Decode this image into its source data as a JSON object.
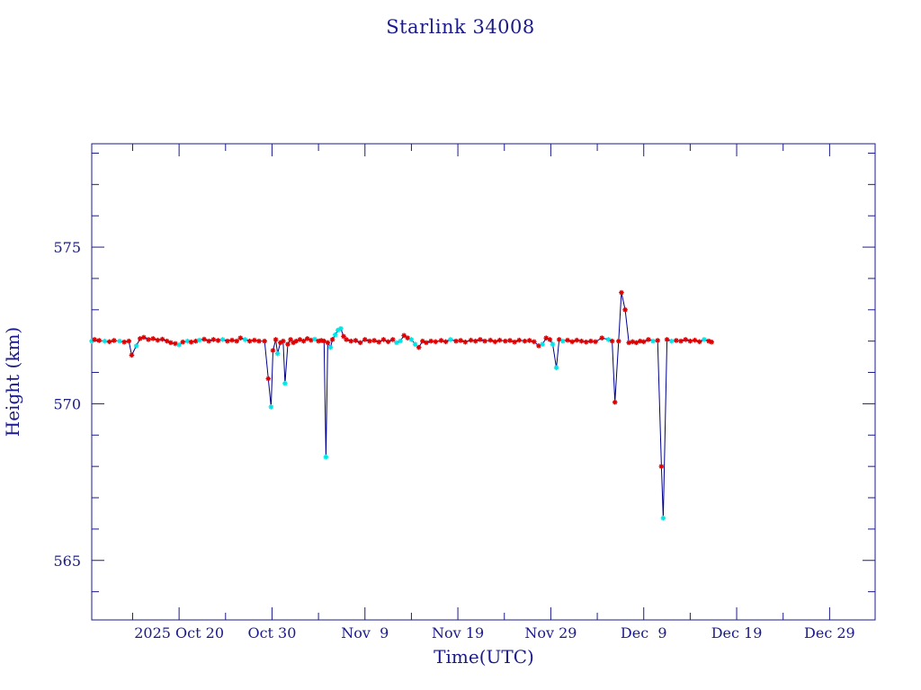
{
  "chart_data": {
    "type": "line",
    "title": "Starlink 34008",
    "xlabel": "Time(UTC)",
    "ylabel": "Height (km)",
    "x_tick_labels": [
      "2025 Oct 20",
      "Oct 30",
      "Nov  9",
      "Nov 19",
      "Nov 29",
      "Dec  9",
      "Dec 19",
      "Dec 29"
    ],
    "x_tick_days": [
      0,
      10,
      20,
      30,
      40,
      50,
      60,
      70
    ],
    "xlim_days": [
      -9.4,
      74.9
    ],
    "y_ticks": [
      565,
      570,
      575
    ],
    "ylim": [
      563.1,
      578.3
    ],
    "grid": false,
    "colors": {
      "axes": "#1a1a8c",
      "line": "#00008b",
      "marker_a": "#00e5e5",
      "marker_b": "#e00000"
    },
    "series": [
      {
        "values": [
          {
            "x": -9.4,
            "y": 572.0,
            "m": "a"
          },
          {
            "x": -9.1,
            "y": 572.05,
            "m": "b"
          },
          {
            "x": -8.6,
            "y": 572.02,
            "m": "b"
          },
          {
            "x": -8.0,
            "y": 572.0,
            "m": "a"
          },
          {
            "x": -7.5,
            "y": 571.98,
            "m": "b"
          },
          {
            "x": -7.0,
            "y": 572.02,
            "m": "b"
          },
          {
            "x": -6.4,
            "y": 572.0,
            "m": "a"
          },
          {
            "x": -5.9,
            "y": 571.97,
            "m": "b"
          },
          {
            "x": -5.4,
            "y": 572.0,
            "m": "b"
          },
          {
            "x": -5.1,
            "y": 571.55,
            "m": "b"
          },
          {
            "x": -4.6,
            "y": 571.85,
            "m": "a"
          },
          {
            "x": -4.2,
            "y": 572.08,
            "m": "b"
          },
          {
            "x": -3.8,
            "y": 572.12,
            "m": "b"
          },
          {
            "x": -3.3,
            "y": 572.05,
            "m": "b"
          },
          {
            "x": -2.8,
            "y": 572.08,
            "m": "b"
          },
          {
            "x": -2.3,
            "y": 572.03,
            "m": "b"
          },
          {
            "x": -1.8,
            "y": 572.06,
            "m": "b"
          },
          {
            "x": -1.3,
            "y": 572.0,
            "m": "b"
          },
          {
            "x": -0.9,
            "y": 571.95,
            "m": "b"
          },
          {
            "x": -0.4,
            "y": 571.92,
            "m": "b"
          },
          {
            "x": 0.0,
            "y": 571.88,
            "m": "a"
          },
          {
            "x": 0.4,
            "y": 571.97,
            "m": "b"
          },
          {
            "x": 0.9,
            "y": 572.0,
            "m": "a"
          },
          {
            "x": 1.3,
            "y": 571.97,
            "m": "b"
          },
          {
            "x": 1.8,
            "y": 572.0,
            "m": "b"
          },
          {
            "x": 2.2,
            "y": 572.03,
            "m": "a"
          },
          {
            "x": 2.7,
            "y": 572.06,
            "m": "b"
          },
          {
            "x": 3.2,
            "y": 572.0,
            "m": "b"
          },
          {
            "x": 3.7,
            "y": 572.05,
            "m": "b"
          },
          {
            "x": 4.2,
            "y": 572.02,
            "m": "b"
          },
          {
            "x": 4.7,
            "y": 572.05,
            "m": "a"
          },
          {
            "x": 5.2,
            "y": 572.0,
            "m": "b"
          },
          {
            "x": 5.7,
            "y": 572.03,
            "m": "b"
          },
          {
            "x": 6.2,
            "y": 572.0,
            "m": "b"
          },
          {
            "x": 6.6,
            "y": 572.1,
            "m": "b"
          },
          {
            "x": 7.1,
            "y": 572.05,
            "m": "a"
          },
          {
            "x": 7.6,
            "y": 572.0,
            "m": "b"
          },
          {
            "x": 8.1,
            "y": 572.03,
            "m": "b"
          },
          {
            "x": 8.6,
            "y": 572.0,
            "m": "b"
          },
          {
            "x": 9.2,
            "y": 572.0,
            "m": "b"
          },
          {
            "x": 9.6,
            "y": 570.8,
            "m": "b"
          },
          {
            "x": 9.9,
            "y": 569.9,
            "m": "a"
          },
          {
            "x": 10.1,
            "y": 571.7,
            "m": "b"
          },
          {
            "x": 10.4,
            "y": 572.05,
            "m": "b"
          },
          {
            "x": 10.6,
            "y": 571.6,
            "m": "a"
          },
          {
            "x": 10.9,
            "y": 571.95,
            "m": "b"
          },
          {
            "x": 11.2,
            "y": 572.0,
            "m": "b"
          },
          {
            "x": 11.4,
            "y": 570.65,
            "m": "a"
          },
          {
            "x": 11.7,
            "y": 571.9,
            "m": "b"
          },
          {
            "x": 12.0,
            "y": 572.05,
            "m": "b"
          },
          {
            "x": 12.3,
            "y": 571.95,
            "m": "b"
          },
          {
            "x": 12.6,
            "y": 572.0,
            "m": "b"
          },
          {
            "x": 13.0,
            "y": 572.05,
            "m": "b"
          },
          {
            "x": 13.4,
            "y": 572.0,
            "m": "b"
          },
          {
            "x": 13.8,
            "y": 572.08,
            "m": "b"
          },
          {
            "x": 14.2,
            "y": 572.03,
            "m": "b"
          },
          {
            "x": 14.6,
            "y": 572.06,
            "m": "a"
          },
          {
            "x": 15.0,
            "y": 572.0,
            "m": "b"
          },
          {
            "x": 15.3,
            "y": 572.02,
            "m": "b"
          },
          {
            "x": 15.6,
            "y": 572.0,
            "m": "b"
          },
          {
            "x": 15.8,
            "y": 568.3,
            "m": "a"
          },
          {
            "x": 16.0,
            "y": 571.95,
            "m": "b"
          },
          {
            "x": 16.3,
            "y": 571.8,
            "m": "a"
          },
          {
            "x": 16.5,
            "y": 572.05,
            "m": "b"
          },
          {
            "x": 16.8,
            "y": 572.2,
            "m": "a"
          },
          {
            "x": 17.1,
            "y": 572.35,
            "m": "a"
          },
          {
            "x": 17.4,
            "y": 572.4,
            "m": "a"
          },
          {
            "x": 17.7,
            "y": 572.15,
            "m": "b"
          },
          {
            "x": 18.0,
            "y": 572.05,
            "m": "b"
          },
          {
            "x": 18.5,
            "y": 572.0,
            "m": "b"
          },
          {
            "x": 19.0,
            "y": 572.02,
            "m": "b"
          },
          {
            "x": 19.5,
            "y": 571.95,
            "m": "b"
          },
          {
            "x": 20.0,
            "y": 572.05,
            "m": "b"
          },
          {
            "x": 20.5,
            "y": 572.0,
            "m": "b"
          },
          {
            "x": 21.0,
            "y": 572.02,
            "m": "b"
          },
          {
            "x": 21.5,
            "y": 571.97,
            "m": "b"
          },
          {
            "x": 22.0,
            "y": 572.05,
            "m": "b"
          },
          {
            "x": 22.5,
            "y": 571.98,
            "m": "b"
          },
          {
            "x": 23.0,
            "y": 572.05,
            "m": "b"
          },
          {
            "x": 23.4,
            "y": 571.95,
            "m": "a"
          },
          {
            "x": 23.8,
            "y": 572.0,
            "m": "a"
          },
          {
            "x": 24.2,
            "y": 572.18,
            "m": "b"
          },
          {
            "x": 24.6,
            "y": 572.1,
            "m": "b"
          },
          {
            "x": 25.0,
            "y": 572.05,
            "m": "a"
          },
          {
            "x": 25.4,
            "y": 571.9,
            "m": "a"
          },
          {
            "x": 25.8,
            "y": 571.8,
            "m": "b"
          },
          {
            "x": 26.2,
            "y": 572.0,
            "m": "b"
          },
          {
            "x": 26.6,
            "y": 571.95,
            "m": "b"
          },
          {
            "x": 27.1,
            "y": 572.0,
            "m": "b"
          },
          {
            "x": 27.6,
            "y": 571.98,
            "m": "b"
          },
          {
            "x": 28.2,
            "y": 572.02,
            "m": "b"
          },
          {
            "x": 28.7,
            "y": 571.98,
            "m": "b"
          },
          {
            "x": 29.2,
            "y": 572.05,
            "m": "a"
          },
          {
            "x": 29.8,
            "y": 572.0,
            "m": "b"
          },
          {
            "x": 30.3,
            "y": 572.02,
            "m": "b"
          },
          {
            "x": 30.8,
            "y": 571.97,
            "m": "b"
          },
          {
            "x": 31.4,
            "y": 572.03,
            "m": "b"
          },
          {
            "x": 31.9,
            "y": 572.0,
            "m": "b"
          },
          {
            "x": 32.4,
            "y": 572.05,
            "m": "b"
          },
          {
            "x": 32.9,
            "y": 572.0,
            "m": "b"
          },
          {
            "x": 33.5,
            "y": 572.03,
            "m": "b"
          },
          {
            "x": 34.0,
            "y": 571.98,
            "m": "b"
          },
          {
            "x": 34.5,
            "y": 572.03,
            "m": "b"
          },
          {
            "x": 35.1,
            "y": 572.0,
            "m": "b"
          },
          {
            "x": 35.6,
            "y": 572.02,
            "m": "b"
          },
          {
            "x": 36.1,
            "y": 571.97,
            "m": "b"
          },
          {
            "x": 36.6,
            "y": 572.03,
            "m": "b"
          },
          {
            "x": 37.2,
            "y": 572.0,
            "m": "b"
          },
          {
            "x": 37.7,
            "y": 572.02,
            "m": "b"
          },
          {
            "x": 38.2,
            "y": 571.98,
            "m": "b"
          },
          {
            "x": 38.7,
            "y": 571.85,
            "m": "b"
          },
          {
            "x": 39.1,
            "y": 571.9,
            "m": "a"
          },
          {
            "x": 39.5,
            "y": 572.1,
            "m": "b"
          },
          {
            "x": 39.9,
            "y": 572.05,
            "m": "b"
          },
          {
            "x": 40.2,
            "y": 571.9,
            "m": "a"
          },
          {
            "x": 40.6,
            "y": 571.15,
            "m": "a"
          },
          {
            "x": 40.9,
            "y": 572.05,
            "m": "b"
          },
          {
            "x": 41.3,
            "y": 572.0,
            "m": "a"
          },
          {
            "x": 41.8,
            "y": 572.03,
            "m": "b"
          },
          {
            "x": 42.3,
            "y": 571.98,
            "m": "b"
          },
          {
            "x": 42.8,
            "y": 572.03,
            "m": "b"
          },
          {
            "x": 43.3,
            "y": 572.0,
            "m": "b"
          },
          {
            "x": 43.8,
            "y": 571.97,
            "m": "b"
          },
          {
            "x": 44.3,
            "y": 572.0,
            "m": "b"
          },
          {
            "x": 44.8,
            "y": 571.98,
            "m": "b"
          },
          {
            "x": 45.5,
            "y": 572.1,
            "m": "b"
          },
          {
            "x": 46.2,
            "y": 572.05,
            "m": "a"
          },
          {
            "x": 46.6,
            "y": 572.0,
            "m": "b"
          },
          {
            "x": 46.9,
            "y": 570.05,
            "m": "b"
          },
          {
            "x": 47.3,
            "y": 572.0,
            "m": "b"
          },
          {
            "x": 47.6,
            "y": 573.55,
            "m": "b"
          },
          {
            "x": 48.0,
            "y": 573.0,
            "m": "b"
          },
          {
            "x": 48.4,
            "y": 571.95,
            "m": "b"
          },
          {
            "x": 48.8,
            "y": 571.98,
            "m": "b"
          },
          {
            "x": 49.2,
            "y": 571.95,
            "m": "b"
          },
          {
            "x": 49.6,
            "y": 572.0,
            "m": "b"
          },
          {
            "x": 50.0,
            "y": 571.98,
            "m": "b"
          },
          {
            "x": 50.5,
            "y": 572.05,
            "m": "b"
          },
          {
            "x": 51.0,
            "y": 572.0,
            "m": "a"
          },
          {
            "x": 51.5,
            "y": 572.02,
            "m": "b"
          },
          {
            "x": 51.9,
            "y": 568.0,
            "m": "b"
          },
          {
            "x": 52.1,
            "y": 566.35,
            "m": "a"
          },
          {
            "x": 52.5,
            "y": 572.05,
            "m": "b"
          },
          {
            "x": 53.0,
            "y": 572.0,
            "m": "a"
          },
          {
            "x": 53.5,
            "y": 572.02,
            "m": "b"
          },
          {
            "x": 54.0,
            "y": 572.0,
            "m": "b"
          },
          {
            "x": 54.5,
            "y": 572.05,
            "m": "b"
          },
          {
            "x": 55.0,
            "y": 572.0,
            "m": "b"
          },
          {
            "x": 55.5,
            "y": 572.03,
            "m": "b"
          },
          {
            "x": 56.0,
            "y": 571.98,
            "m": "b"
          },
          {
            "x": 56.5,
            "y": 572.05,
            "m": "a"
          },
          {
            "x": 57.0,
            "y": 572.0,
            "m": "b"
          },
          {
            "x": 57.3,
            "y": 571.97,
            "m": "b"
          }
        ]
      }
    ]
  }
}
